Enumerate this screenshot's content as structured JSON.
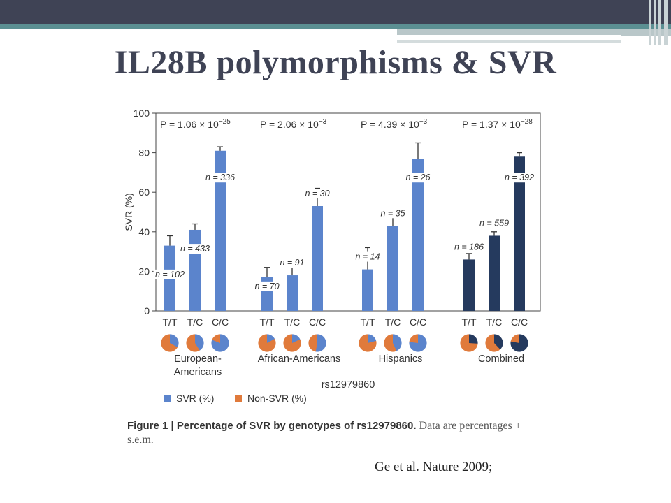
{
  "slide": {
    "title": "IL28B polymorphisms & SVR",
    "caption_label": "Figure 1 | Percentage of SVR by genotypes of rs12979860.",
    "caption_text": " Data are percentages + s.e.m.",
    "citation": "Ge et al. Nature 2009;"
  },
  "colors": {
    "svr_blue": "#5b84cc",
    "combined_navy": "#253a5e",
    "nonsvr_orange": "#e07a3b",
    "header_dark": "#3f4355",
    "header_teal": "#5b8f92"
  },
  "chart_data": {
    "type": "bar",
    "ylabel": "SVR (%)",
    "xlabel": "rs12979860",
    "ylim": [
      0,
      100
    ],
    "yticks": [
      0,
      20,
      40,
      60,
      80,
      100
    ],
    "grid": false,
    "legend": [
      {
        "label": "SVR (%)",
        "color": "#5b84cc"
      },
      {
        "label": "Non-SVR (%)",
        "color": "#e07a3b"
      }
    ],
    "legend_placement": "bottom-left",
    "groups": [
      {
        "name": [
          "European-",
          "Americans"
        ],
        "p_value": "P = 1.06 × 10",
        "p_exp": "−25",
        "color": "#5b84cc",
        "bars": [
          {
            "genotype": "T/T",
            "value": 33,
            "sem": 5,
            "n_label": "n = 102"
          },
          {
            "genotype": "T/C",
            "value": 41,
            "sem": 3,
            "n_label": "n = 433"
          },
          {
            "genotype": "C/C",
            "value": 81,
            "sem": 2,
            "n_label": "n = 336"
          }
        ]
      },
      {
        "name": [
          "African-Americans"
        ],
        "p_value": "P = 2.06 × 10",
        "p_exp": "−3",
        "color": "#5b84cc",
        "bars": [
          {
            "genotype": "T/T",
            "value": 17,
            "sem": 5,
            "n_label": "n = 70"
          },
          {
            "genotype": "T/C",
            "value": 18,
            "sem": 5,
            "n_label": "n = 91"
          },
          {
            "genotype": "C/C",
            "value": 53,
            "sem": 9,
            "n_label": "n = 30"
          }
        ]
      },
      {
        "name": [
          "Hispanics"
        ],
        "p_value": "P = 4.39 × 10",
        "p_exp": "−3",
        "color": "#5b84cc",
        "bars": [
          {
            "genotype": "T/T",
            "value": 21,
            "sem": 11,
            "n_label": "n = 14"
          },
          {
            "genotype": "T/C",
            "value": 43,
            "sem": 8,
            "n_label": "n = 35"
          },
          {
            "genotype": "C/C",
            "value": 77,
            "sem": 8,
            "n_label": "n = 26"
          }
        ]
      },
      {
        "name": [
          "Combined"
        ],
        "p_value": "P = 1.37 × 10",
        "p_exp": "−28",
        "color": "#253a5e",
        "bars": [
          {
            "genotype": "T/T",
            "value": 26,
            "sem": 3,
            "n_label": "n = 186"
          },
          {
            "genotype": "T/C",
            "value": 38,
            "sem": 2,
            "n_label": "n = 559"
          },
          {
            "genotype": "C/C",
            "value": 78,
            "sem": 2,
            "n_label": "n = 392"
          }
        ]
      }
    ]
  }
}
